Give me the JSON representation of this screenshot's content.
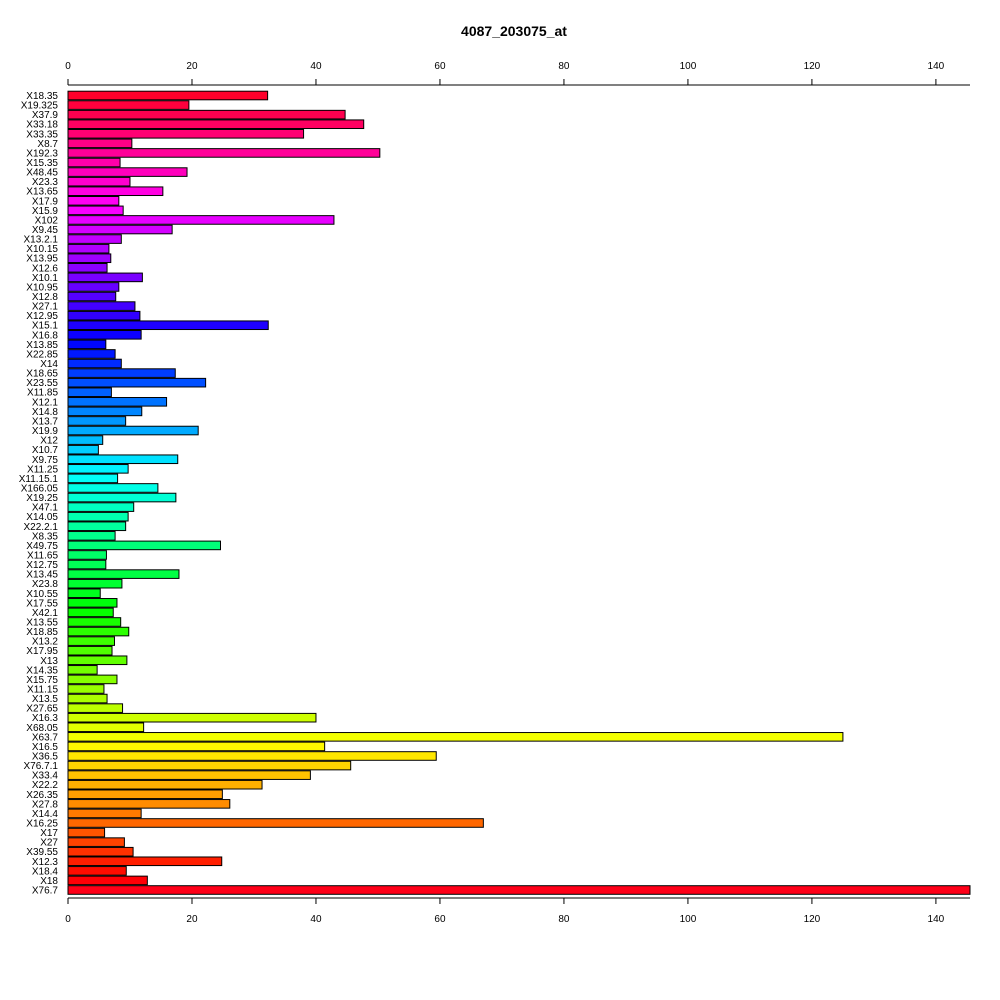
{
  "chart_data": {
    "type": "bar",
    "orientation": "horizontal",
    "title": "4087_203075_at",
    "xlabel": "",
    "ylabel": "",
    "xlim": [
      0,
      145.5
    ],
    "xticks": [
      0,
      20,
      40,
      60,
      80,
      100,
      120,
      140
    ],
    "axes": [
      "top",
      "bottom"
    ],
    "grid": false,
    "color_scheme": "rainbow",
    "categories": [
      "X18.35",
      "X19.325",
      "X37.9",
      "X33.18",
      "X33.35",
      "X8.7",
      "X192.3",
      "X15.35",
      "X48.45",
      "X23.3",
      "X13.65",
      "X17.9",
      "X15.9",
      "X102",
      "X9.45",
      "X13.2.1",
      "X10.15",
      "X13.95",
      "X12.6",
      "X10.1",
      "X10.95",
      "X12.8",
      "X27.1",
      "X12.95",
      "X15.1",
      "X16.8",
      "X13.85",
      "X22.85",
      "X14",
      "X18.65",
      "X23.55",
      "X11.85",
      "X12.1",
      "X14.8",
      "X13.7",
      "X19.9",
      "X12",
      "X10.7",
      "X9.75",
      "X11.25",
      "X11.15.1",
      "X166.05",
      "X19.25",
      "X47.1",
      "X14.05",
      "X22.2.1",
      "X8.35",
      "X49.75",
      "X11.65",
      "X12.75",
      "X13.45",
      "X23.8",
      "X10.55",
      "X17.55",
      "X42.1",
      "X13.55",
      "X18.85",
      "X13.2",
      "X17.95",
      "X13",
      "X14.35",
      "X15.75",
      "X11.15",
      "X13.5",
      "X27.65",
      "X16.3",
      "X68.05",
      "X63.7",
      "X16.5",
      "X36.5",
      "X76.7.1",
      "X33.4",
      "X22.2",
      "X26.35",
      "X27.8",
      "X14.4",
      "X16.25",
      "X17",
      "X27",
      "X39.55",
      "X12.3",
      "X18.4",
      "X18",
      "X76.7"
    ],
    "values": [
      32.2,
      19.5,
      44.7,
      47.7,
      38.0,
      10.3,
      50.3,
      8.4,
      19.2,
      10.0,
      15.3,
      8.2,
      8.9,
      42.9,
      16.8,
      8.6,
      6.6,
      6.9,
      6.3,
      12.0,
      8.2,
      7.7,
      10.8,
      11.6,
      32.3,
      11.8,
      6.1,
      7.6,
      8.6,
      17.3,
      22.2,
      7.0,
      15.9,
      11.9,
      9.3,
      21.0,
      5.6,
      4.9,
      17.7,
      9.7,
      8.0,
      14.5,
      17.4,
      10.6,
      9.7,
      9.3,
      7.6,
      24.6,
      6.2,
      6.1,
      17.9,
      8.7,
      5.2,
      7.9,
      7.3,
      8.5,
      9.8,
      7.5,
      7.1,
      9.5,
      4.7,
      7.9,
      5.8,
      6.3,
      8.8,
      40.0,
      12.2,
      125.0,
      41.4,
      59.4,
      45.6,
      39.1,
      31.3,
      24.9,
      26.1,
      11.8,
      67.0,
      5.9,
      9.1,
      10.5,
      24.8,
      9.4,
      12.8,
      145.5
    ]
  }
}
